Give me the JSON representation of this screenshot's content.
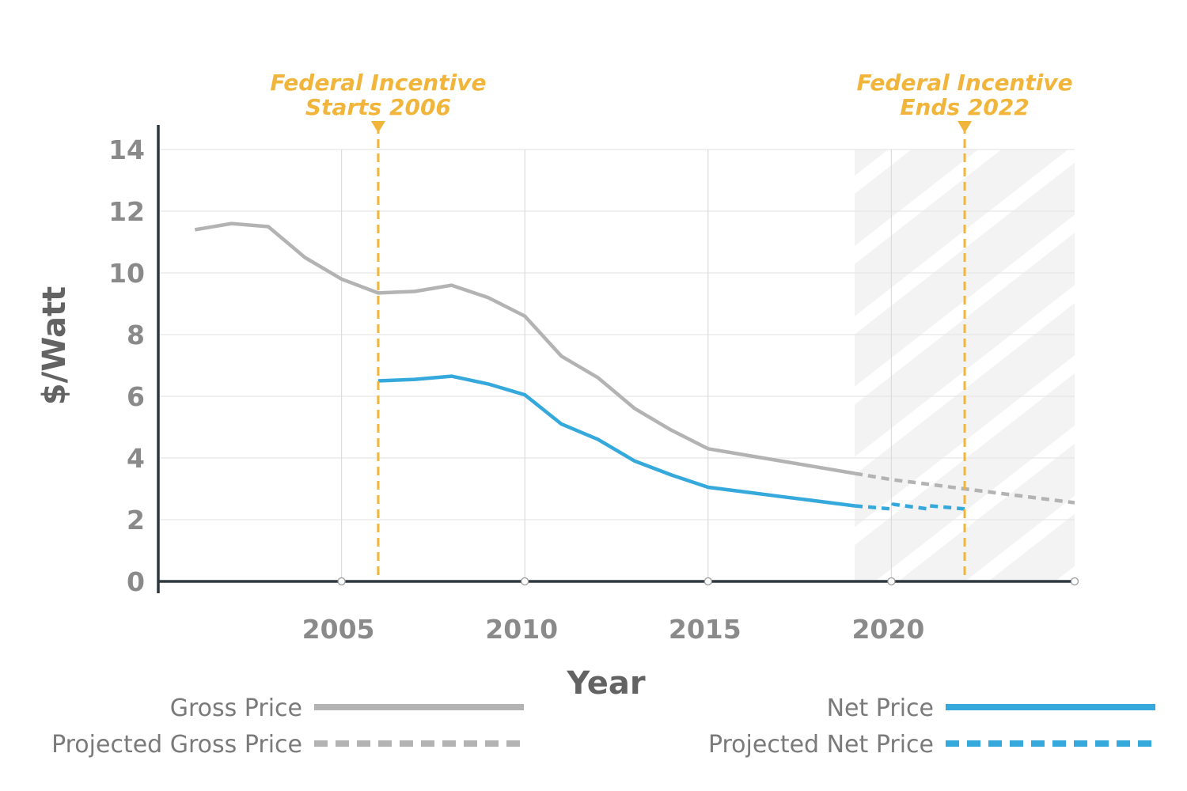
{
  "chart_data": {
    "type": "line",
    "ylabel": "$/Watt",
    "xlabel": "Year",
    "xlim": [
      2000,
      2025
    ],
    "ylim": [
      0,
      14
    ],
    "x_ticks": [
      {
        "value": 2005,
        "label": "2005"
      },
      {
        "value": 2010,
        "label": "2010"
      },
      {
        "value": 2015,
        "label": "2015"
      },
      {
        "value": 2020,
        "label": "2020"
      }
    ],
    "y_ticks": [
      {
        "value": 0,
        "label": "0"
      },
      {
        "value": 2,
        "label": "2"
      },
      {
        "value": 4,
        "label": "4"
      },
      {
        "value": 6,
        "label": "6"
      },
      {
        "value": 8,
        "label": "8"
      },
      {
        "value": 10,
        "label": "10"
      },
      {
        "value": 12,
        "label": "12"
      },
      {
        "value": 14,
        "label": "14"
      }
    ],
    "grid": true,
    "shaded_region": {
      "x_start": 2019,
      "x_end": 2025,
      "pattern": "diagonal-hatch"
    },
    "annotations": [
      {
        "x": 2006,
        "lines": [
          "Federal Incentive",
          "Starts 2006"
        ]
      },
      {
        "x": 2022,
        "lines": [
          "Federal Incentive",
          "Ends 2022"
        ]
      }
    ],
    "series": [
      {
        "name": "Gross Price",
        "color": "#b3b3b3",
        "style": "solid",
        "points": [
          [
            2001,
            11.4
          ],
          [
            2002,
            11.6
          ],
          [
            2003,
            11.5
          ],
          [
            2004,
            10.5
          ],
          [
            2005,
            9.8
          ],
          [
            2006,
            9.35
          ],
          [
            2007,
            9.4
          ],
          [
            2008,
            9.6
          ],
          [
            2009,
            9.2
          ],
          [
            2010,
            8.6
          ],
          [
            2011,
            7.3
          ],
          [
            2012,
            6.6
          ],
          [
            2013,
            5.6
          ],
          [
            2014,
            4.9
          ],
          [
            2015,
            4.3
          ],
          [
            2016,
            4.1
          ],
          [
            2017,
            3.9
          ],
          [
            2018,
            3.7
          ],
          [
            2019,
            3.5
          ]
        ]
      },
      {
        "name": "Projected Gross Price",
        "color": "#b3b3b3",
        "style": "dashed",
        "points": [
          [
            2019,
            3.5
          ],
          [
            2020,
            3.3
          ],
          [
            2021,
            3.15
          ],
          [
            2022,
            3.0
          ],
          [
            2023,
            2.85
          ],
          [
            2024,
            2.7
          ],
          [
            2025,
            2.55
          ]
        ]
      },
      {
        "name": "Net Price",
        "color": "#35a8dc",
        "style": "solid",
        "points": [
          [
            2006,
            6.5
          ],
          [
            2007,
            6.55
          ],
          [
            2008,
            6.65
          ],
          [
            2009,
            6.4
          ],
          [
            2010,
            6.05
          ],
          [
            2011,
            5.1
          ],
          [
            2012,
            4.6
          ],
          [
            2013,
            3.9
          ],
          [
            2014,
            3.45
          ],
          [
            2015,
            3.05
          ],
          [
            2016,
            2.9
          ],
          [
            2017,
            2.75
          ],
          [
            2018,
            2.6
          ],
          [
            2019,
            2.45
          ]
        ]
      },
      {
        "name": "Projected Net Price",
        "color": "#35a8dc",
        "style": "dashed",
        "points": [
          [
            2019,
            2.45
          ],
          [
            2020,
            2.35
          ],
          [
            2020.05,
            2.5
          ],
          [
            2021,
            2.35
          ],
          [
            2021.05,
            2.45
          ],
          [
            2022,
            2.35
          ]
        ]
      }
    ],
    "legend": {
      "placement": "bottom",
      "items": [
        {
          "label": "Gross Price",
          "color": "#b3b3b3",
          "style": "solid"
        },
        {
          "label": "Net Price",
          "color": "#35a8dc",
          "style": "solid"
        },
        {
          "label": "Projected Gross Price",
          "color": "#b3b3b3",
          "style": "dashed"
        },
        {
          "label": "Projected Net Price",
          "color": "#35a8dc",
          "style": "dashed"
        }
      ]
    },
    "colors": {
      "annotation": "#f0b53a",
      "axis": "#2d3840",
      "grid": "#e6e6e6",
      "shade": "#f3f3f3"
    }
  }
}
